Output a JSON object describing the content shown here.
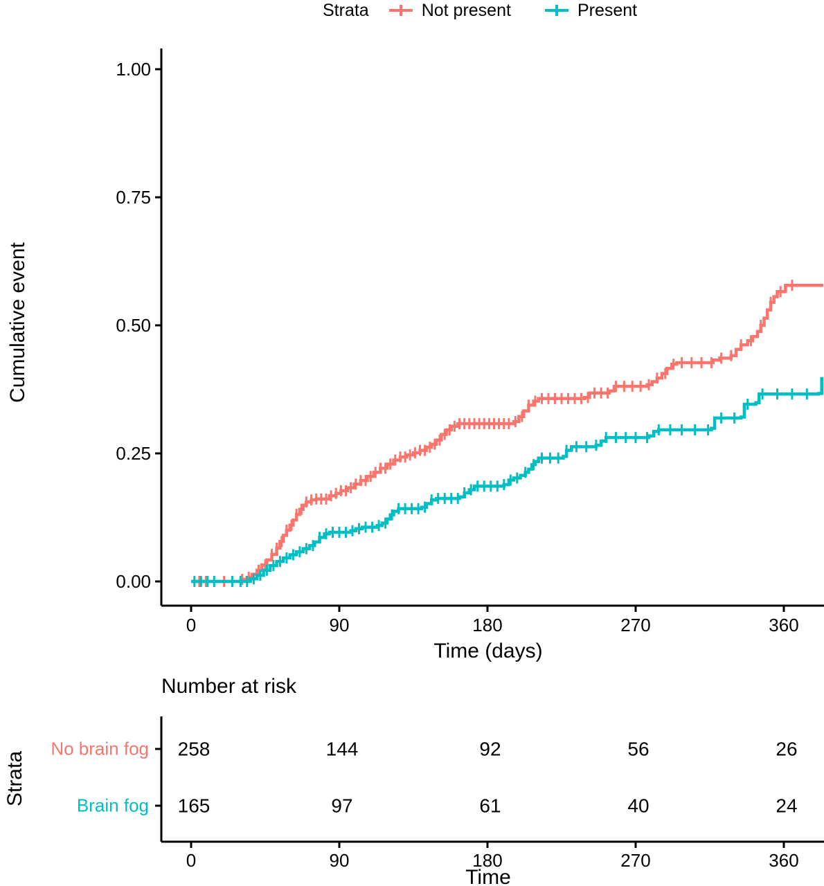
{
  "colors": {
    "not_present": "#F8766D",
    "present": "#00BEC4",
    "axis": "#000000"
  },
  "legend": {
    "title": "Strata",
    "items": [
      {
        "label": "Not present",
        "color_key": "not_present"
      },
      {
        "label": "Present",
        "color_key": "present"
      }
    ]
  },
  "chart_data": {
    "type": "line",
    "subtype": "kaplan-meier-cumulative-event-step-curves",
    "title": "",
    "xlabel": "Time (days)",
    "ylabel": "Cumulative event",
    "xlim": [
      0,
      384
    ],
    "ylim": [
      0,
      1
    ],
    "grid": "off",
    "legend_position": "top",
    "x_ticks": [
      {
        "label": "0",
        "value": 0
      },
      {
        "label": "90",
        "value": 90
      },
      {
        "label": "180",
        "value": 180
      },
      {
        "label": "270",
        "value": 270
      },
      {
        "label": "360",
        "value": 360
      }
    ],
    "y_ticks": [
      {
        "label": "0.00",
        "value": 0
      },
      {
        "label": "0.25",
        "value": 0.25
      },
      {
        "label": "0.50",
        "value": 0.5
      },
      {
        "label": "0.75",
        "value": 0.75
      },
      {
        "label": "1.00",
        "value": 1
      }
    ],
    "series": [
      {
        "name": "Not present",
        "color_key": "not_present",
        "steps": [
          [
            0,
            0
          ],
          [
            29,
            0
          ],
          [
            31,
            0.004
          ],
          [
            34,
            0.008
          ],
          [
            37,
            0.014
          ],
          [
            40,
            0.022
          ],
          [
            43,
            0.032
          ],
          [
            46,
            0.042
          ],
          [
            49,
            0.053
          ],
          [
            52,
            0.065
          ],
          [
            54,
            0.078
          ],
          [
            56,
            0.09
          ],
          [
            58,
            0.1
          ],
          [
            60,
            0.11
          ],
          [
            62,
            0.12
          ],
          [
            64,
            0.131
          ],
          [
            66,
            0.141
          ],
          [
            68,
            0.149
          ],
          [
            70,
            0.155
          ],
          [
            73,
            0.159
          ],
          [
            76,
            0.161
          ],
          [
            84,
            0.167
          ],
          [
            88,
            0.172
          ],
          [
            91,
            0.177
          ],
          [
            95,
            0.183
          ],
          [
            99,
            0.19
          ],
          [
            103,
            0.197
          ],
          [
            107,
            0.205
          ],
          [
            111,
            0.213
          ],
          [
            115,
            0.221
          ],
          [
            119,
            0.229
          ],
          [
            123,
            0.237
          ],
          [
            127,
            0.243
          ],
          [
            131,
            0.247
          ],
          [
            135,
            0.251
          ],
          [
            139,
            0.256
          ],
          [
            143,
            0.262
          ],
          [
            146,
            0.268
          ],
          [
            149,
            0.276
          ],
          [
            152,
            0.287
          ],
          [
            155,
            0.296
          ],
          [
            158,
            0.303
          ],
          [
            162,
            0.308
          ],
          [
            196,
            0.312
          ],
          [
            199,
            0.322
          ],
          [
            202,
            0.333
          ],
          [
            205,
            0.344
          ],
          [
            208,
            0.352
          ],
          [
            211,
            0.357
          ],
          [
            239,
            0.359
          ],
          [
            242,
            0.368
          ],
          [
            254,
            0.372
          ],
          [
            257,
            0.381
          ],
          [
            277,
            0.384
          ],
          [
            280,
            0.39
          ],
          [
            283,
            0.397
          ],
          [
            286,
            0.406
          ],
          [
            289,
            0.416
          ],
          [
            292,
            0.424
          ],
          [
            295,
            0.427
          ],
          [
            317,
            0.432
          ],
          [
            321,
            0.436
          ],
          [
            328,
            0.441
          ],
          [
            331,
            0.453
          ],
          [
            334,
            0.462
          ],
          [
            338,
            0.47
          ],
          [
            341,
            0.478
          ],
          [
            344,
            0.488
          ],
          [
            346,
            0.5
          ],
          [
            348,
            0.514
          ],
          [
            350,
            0.53
          ],
          [
            352,
            0.545
          ],
          [
            354,
            0.556
          ],
          [
            356,
            0.566
          ],
          [
            361,
            0.578
          ],
          [
            384,
            0.578
          ]
        ],
        "censor_days": [
          5,
          9,
          20,
          31,
          35,
          41,
          45,
          49,
          52,
          55,
          58,
          61,
          64,
          67,
          70,
          73,
          76,
          79,
          82,
          85,
          88,
          91,
          94,
          97,
          100,
          103,
          106,
          109,
          112,
          115,
          118,
          121,
          124,
          127,
          130,
          133,
          136,
          139,
          142,
          145,
          148,
          151,
          154,
          157,
          160,
          163,
          166,
          169,
          172,
          175,
          178,
          181,
          184,
          187,
          190,
          193,
          197,
          201,
          205,
          209,
          213,
          217,
          221,
          225,
          229,
          233,
          237,
          241,
          245,
          249,
          253,
          258,
          263,
          268,
          273,
          278,
          283,
          288,
          293,
          298,
          304,
          310,
          316,
          322,
          328,
          334,
          340,
          346,
          352,
          358,
          365
        ]
      },
      {
        "name": "Present",
        "color_key": "present",
        "steps": [
          [
            0,
            0
          ],
          [
            33,
            0
          ],
          [
            36,
            0.005
          ],
          [
            40,
            0.012
          ],
          [
            44,
            0.022
          ],
          [
            48,
            0.031
          ],
          [
            52,
            0.039
          ],
          [
            56,
            0.046
          ],
          [
            60,
            0.052
          ],
          [
            64,
            0.058
          ],
          [
            68,
            0.064
          ],
          [
            72,
            0.07
          ],
          [
            75,
            0.077
          ],
          [
            78,
            0.086
          ],
          [
            81,
            0.093
          ],
          [
            84,
            0.096
          ],
          [
            97,
            0.099
          ],
          [
            100,
            0.103
          ],
          [
            104,
            0.106
          ],
          [
            113,
            0.109
          ],
          [
            116,
            0.114
          ],
          [
            119,
            0.122
          ],
          [
            121,
            0.13
          ],
          [
            123,
            0.137
          ],
          [
            126,
            0.142
          ],
          [
            140,
            0.145
          ],
          [
            143,
            0.152
          ],
          [
            146,
            0.159
          ],
          [
            149,
            0.162
          ],
          [
            163,
            0.165
          ],
          [
            166,
            0.173
          ],
          [
            169,
            0.179
          ],
          [
            172,
            0.186
          ],
          [
            190,
            0.189
          ],
          [
            193,
            0.198
          ],
          [
            196,
            0.202
          ],
          [
            200,
            0.207
          ],
          [
            203,
            0.213
          ],
          [
            205,
            0.219
          ],
          [
            207,
            0.228
          ],
          [
            209,
            0.234
          ],
          [
            211,
            0.241
          ],
          [
            226,
            0.244
          ],
          [
            228,
            0.256
          ],
          [
            231,
            0.263
          ],
          [
            246,
            0.266
          ],
          [
            249,
            0.274
          ],
          [
            252,
            0.281
          ],
          [
            278,
            0.284
          ],
          [
            281,
            0.293
          ],
          [
            284,
            0.296
          ],
          [
            316,
            0.299
          ],
          [
            318,
            0.319
          ],
          [
            334,
            0.321
          ],
          [
            336,
            0.346
          ],
          [
            343,
            0.349
          ],
          [
            345,
            0.366
          ],
          [
            381,
            0.367
          ],
          [
            383,
            0.396
          ],
          [
            384,
            0.396
          ]
        ],
        "censor_days": [
          2,
          6,
          10,
          14,
          25,
          30,
          34,
          38,
          42,
          46,
          50,
          54,
          58,
          62,
          66,
          70,
          74,
          78,
          82,
          86,
          90,
          94,
          98,
          102,
          106,
          110,
          114,
          118,
          122,
          126,
          130,
          134,
          138,
          142,
          146,
          150,
          154,
          158,
          162,
          166,
          170,
          174,
          178,
          182,
          186,
          190,
          194,
          198,
          203,
          208,
          213,
          218,
          223,
          228,
          234,
          240,
          246,
          252,
          258,
          264,
          270,
          277,
          284,
          291,
          298,
          306,
          314,
          322,
          330,
          338,
          347,
          356,
          365,
          374
        ]
      }
    ]
  },
  "risk_table": {
    "title": "Number at risk",
    "y_axis_title": "Strata",
    "x_axis_title": "Time",
    "rows": [
      {
        "label": "No brain fog",
        "color_key": "not_present",
        "counts": [
          "258",
          "144",
          "92",
          "56",
          "26"
        ]
      },
      {
        "label": "Brain fog",
        "color_key": "present",
        "counts": [
          "165",
          "97",
          "61",
          "40",
          "24"
        ]
      }
    ]
  }
}
